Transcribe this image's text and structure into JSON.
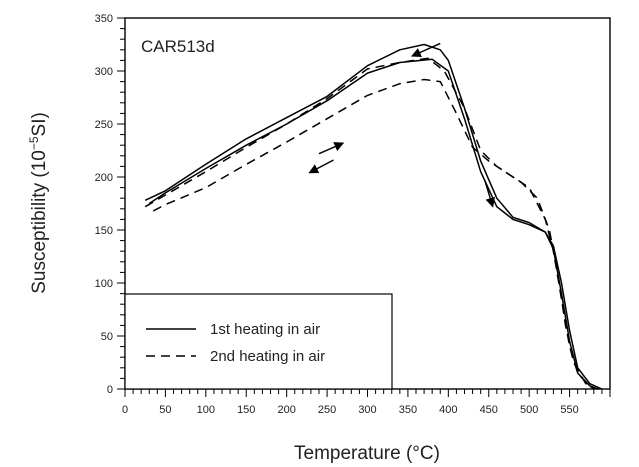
{
  "chart_data": {
    "type": "line",
    "annotation": "CAR513d",
    "xlabel": "Temperature (°C)",
    "ylabel_main": "Susceptibility (10",
    "ylabel_sup": "−5",
    "ylabel_tail": "SI)",
    "xlim": [
      0,
      600
    ],
    "ylim": [
      0,
      350
    ],
    "x_ticks": [
      0,
      50,
      100,
      150,
      200,
      250,
      300,
      350,
      400,
      450,
      500,
      550
    ],
    "y_ticks": [
      0,
      50,
      100,
      150,
      200,
      250,
      300,
      350
    ],
    "grid": false,
    "legend_position": "bottom-left",
    "series": [
      {
        "name": "1st heating in air",
        "style": "solid",
        "curves": [
          {
            "points": [
              [
                25,
                178
              ],
              [
                50,
                187
              ],
              [
                100,
                212
              ],
              [
                150,
                236
              ],
              [
                200,
                256
              ],
              [
                250,
                276
              ],
              [
                300,
                305
              ],
              [
                340,
                320
              ],
              [
                370,
                325
              ],
              [
                390,
                320
              ],
              [
                400,
                310
              ],
              [
                420,
                265
              ],
              [
                440,
                215
              ],
              [
                460,
                180
              ],
              [
                480,
                162
              ],
              [
                500,
                157
              ],
              [
                520,
                148
              ],
              [
                530,
                135
              ],
              [
                540,
                100
              ],
              [
                550,
                55
              ],
              [
                560,
                20
              ],
              [
                575,
                5
              ],
              [
                590,
                0
              ]
            ]
          },
          {
            "points": [
              [
                30,
                175
              ],
              [
                50,
                185
              ],
              [
                100,
                208
              ],
              [
                150,
                230
              ],
              [
                200,
                250
              ],
              [
                250,
                272
              ],
              [
                300,
                298
              ],
              [
                340,
                308
              ],
              [
                380,
                311
              ],
              [
                400,
                300
              ],
              [
                420,
                255
              ],
              [
                440,
                205
              ],
              [
                460,
                172
              ],
              [
                480,
                160
              ],
              [
                500,
                155
              ],
              [
                520,
                148
              ],
              [
                530,
                132
              ],
              [
                540,
                90
              ],
              [
                550,
                45
              ],
              [
                560,
                15
              ],
              [
                575,
                3
              ],
              [
                585,
                0
              ]
            ]
          }
        ]
      },
      {
        "name": "2nd heating in air",
        "style": "dashed",
        "curves": [
          {
            "points": [
              [
                25,
                172
              ],
              [
                50,
                183
              ],
              [
                100,
                205
              ],
              [
                150,
                228
              ],
              [
                200,
                250
              ],
              [
                250,
                274
              ],
              [
                300,
                302
              ],
              [
                340,
                308
              ],
              [
                375,
                312
              ],
              [
                395,
                300
              ],
              [
                420,
                265
              ],
              [
                440,
                225
              ],
              [
                460,
                210
              ],
              [
                480,
                200
              ],
              [
                500,
                190
              ],
              [
                520,
                160
              ],
              [
                530,
                130
              ],
              [
                540,
                85
              ],
              [
                550,
                40
              ],
              [
                560,
                15
              ],
              [
                575,
                2
              ],
              [
                585,
                0
              ]
            ]
          },
          {
            "points": [
              [
                35,
                168
              ],
              [
                50,
                174
              ],
              [
                100,
                190
              ],
              [
                150,
                212
              ],
              [
                200,
                233
              ],
              [
                250,
                255
              ],
              [
                300,
                277
              ],
              [
                340,
                288
              ],
              [
                370,
                292
              ],
              [
                390,
                290
              ],
              [
                410,
                260
              ],
              [
                430,
                228
              ],
              [
                450,
                215
              ],
              [
                470,
                205
              ],
              [
                490,
                195
              ],
              [
                510,
                180
              ],
              [
                525,
                150
              ],
              [
                535,
                110
              ],
              [
                545,
                60
              ],
              [
                555,
                25
              ],
              [
                570,
                5
              ],
              [
                582,
                0
              ]
            ]
          }
        ]
      }
    ],
    "arrows": [
      {
        "from": [
          390,
          326
        ],
        "to": [
          355,
          314
        ]
      },
      {
        "from": [
          240,
          222
        ],
        "to": [
          270,
          232
        ]
      },
      {
        "from": [
          258,
          216
        ],
        "to": [
          228,
          204
        ]
      },
      {
        "from": [
          445,
          197
        ],
        "to": [
          455,
          172
        ]
      }
    ]
  }
}
